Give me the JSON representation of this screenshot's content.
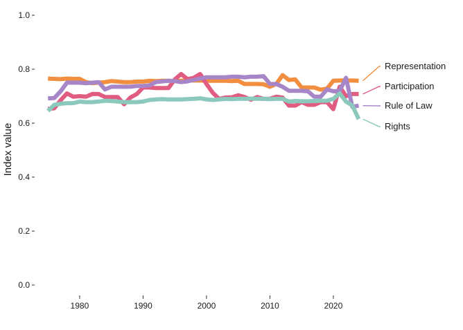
{
  "chart_data": {
    "type": "line",
    "title": "",
    "xlabel": "",
    "ylabel": "Index value",
    "xlim": [
      1974,
      2027
    ],
    "ylim": [
      0,
      1
    ],
    "x_ticks": [
      1980,
      1990,
      2000,
      2010,
      2020
    ],
    "x_tick_labels": [
      "1980",
      "1990",
      "2000",
      "2010",
      "2020"
    ],
    "y_ticks": [
      0,
      0.2,
      0.4,
      0.6,
      0.8,
      1.0
    ],
    "y_tick_labels": [
      "0.0",
      "0.2",
      "0.4",
      "0.6",
      "0.8",
      "1.0"
    ],
    "grid": false,
    "legend": "direct labels at right end of lines",
    "x": [
      1975,
      1976,
      1977,
      1978,
      1979,
      1980,
      1981,
      1982,
      1983,
      1984,
      1985,
      1986,
      1987,
      1988,
      1989,
      1990,
      1991,
      1992,
      1993,
      1994,
      1995,
      1996,
      1997,
      1998,
      1999,
      2000,
      2001,
      2002,
      2003,
      2004,
      2005,
      2006,
      2007,
      2008,
      2009,
      2010,
      2011,
      2012,
      2013,
      2014,
      2015,
      2016,
      2017,
      2018,
      2019,
      2020,
      2021,
      2022,
      2023,
      2024
    ],
    "series": [
      {
        "name": "Representation",
        "color": "#F28E3F",
        "values": [
          0.765,
          0.764,
          0.763,
          0.765,
          0.764,
          0.764,
          0.752,
          0.748,
          0.75,
          0.752,
          0.756,
          0.754,
          0.752,
          0.752,
          0.754,
          0.754,
          0.757,
          0.756,
          0.757,
          0.757,
          0.756,
          0.757,
          0.758,
          0.758,
          0.758,
          0.757,
          0.757,
          0.757,
          0.757,
          0.756,
          0.757,
          0.745,
          0.745,
          0.745,
          0.744,
          0.735,
          0.745,
          0.778,
          0.76,
          0.762,
          0.732,
          0.732,
          0.732,
          0.724,
          0.728,
          0.757,
          0.758,
          0.758,
          0.758,
          0.757
        ]
      },
      {
        "name": "Participation",
        "color": "#E05C80",
        "values": [
          0.653,
          0.655,
          0.685,
          0.71,
          0.698,
          0.7,
          0.698,
          0.708,
          0.708,
          0.697,
          0.697,
          0.697,
          0.67,
          0.695,
          0.708,
          0.732,
          0.732,
          0.73,
          0.73,
          0.73,
          0.762,
          0.782,
          0.763,
          0.768,
          0.782,
          0.745,
          0.712,
          0.69,
          0.695,
          0.696,
          0.703,
          0.697,
          0.687,
          0.697,
          0.69,
          0.69,
          0.698,
          0.695,
          0.665,
          0.665,
          0.678,
          0.668,
          0.668,
          0.678,
          0.678,
          0.652,
          0.735,
          0.7,
          0.708,
          0.708
        ]
      },
      {
        "name": "Rule of Law",
        "color": "#A786C8",
        "values": [
          0.692,
          0.693,
          0.718,
          0.75,
          0.75,
          0.75,
          0.748,
          0.75,
          0.752,
          0.725,
          0.735,
          0.735,
          0.735,
          0.735,
          0.738,
          0.738,
          0.74,
          0.752,
          0.755,
          0.757,
          0.756,
          0.752,
          0.755,
          0.76,
          0.765,
          0.77,
          0.77,
          0.77,
          0.77,
          0.772,
          0.772,
          0.77,
          0.772,
          0.772,
          0.774,
          0.745,
          0.745,
          0.735,
          0.72,
          0.72,
          0.72,
          0.718,
          0.698,
          0.698,
          0.725,
          0.718,
          0.72,
          0.768,
          0.66,
          0.665
        ]
      },
      {
        "name": "Rights",
        "color": "#8CC9BD",
        "values": [
          0.645,
          0.668,
          0.672,
          0.674,
          0.674,
          0.68,
          0.678,
          0.678,
          0.68,
          0.683,
          0.682,
          0.68,
          0.678,
          0.678,
          0.678,
          0.68,
          0.686,
          0.688,
          0.689,
          0.688,
          0.688,
          0.688,
          0.689,
          0.69,
          0.692,
          0.688,
          0.686,
          0.688,
          0.69,
          0.689,
          0.69,
          0.69,
          0.691,
          0.69,
          0.69,
          0.689,
          0.69,
          0.69,
          0.68,
          0.682,
          0.681,
          0.681,
          0.682,
          0.683,
          0.683,
          0.69,
          0.71,
          0.68,
          0.665,
          0.615
        ]
      }
    ]
  }
}
